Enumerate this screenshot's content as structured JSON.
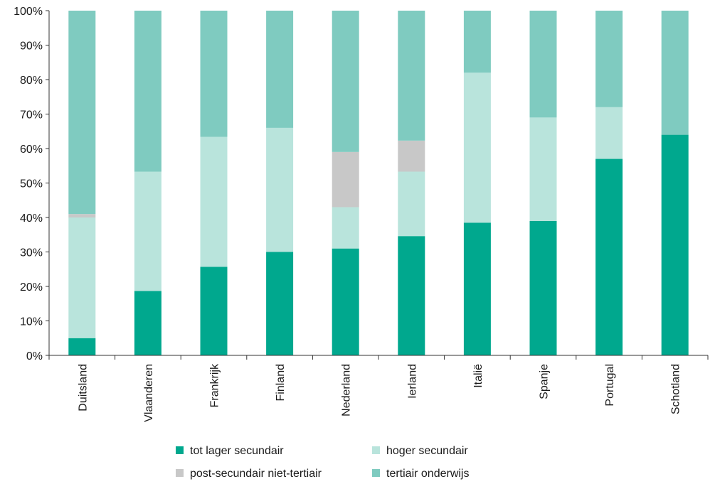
{
  "chart_data": {
    "type": "bar",
    "stacked": true,
    "categories": [
      "Duitsland",
      "Vlaanderen",
      "Frankrijk",
      "Finland",
      "Nederland",
      "Ierland",
      "Italië",
      "Spanje",
      "Portugal",
      "Schotland"
    ],
    "highlight_category": "Vlaanderen",
    "highlight_color": "#00a88e",
    "series": [
      {
        "name": "tot lager secundair",
        "color": "#00a88e",
        "values": [
          5,
          18.7,
          25.7,
          30,
          31,
          34.6,
          38.5,
          39,
          57,
          64
        ]
      },
      {
        "name": "hoger secundair",
        "color": "#b9e4dc",
        "values": [
          35,
          34.6,
          37.7,
          36,
          12,
          18.7,
          43.5,
          30,
          15,
          0
        ]
      },
      {
        "name": "post-secundair niet-tertiair",
        "color": "#c8c8c8",
        "values": [
          1,
          0,
          0,
          0,
          16,
          9,
          0,
          0,
          0,
          0
        ]
      },
      {
        "name": "tertiair onderwijs",
        "color": "#7fcbc0",
        "values": [
          59,
          46.7,
          36.6,
          34,
          41,
          37.7,
          18,
          31,
          28,
          36
        ]
      }
    ],
    "yticks": [
      "0%",
      "10%",
      "20%",
      "30%",
      "40%",
      "50%",
      "60%",
      "70%",
      "80%",
      "90%",
      "100%"
    ],
    "ylim": [
      0,
      100
    ],
    "grid": false,
    "legend_position": "bottom",
    "title": "",
    "xlabel": "",
    "ylabel": ""
  }
}
